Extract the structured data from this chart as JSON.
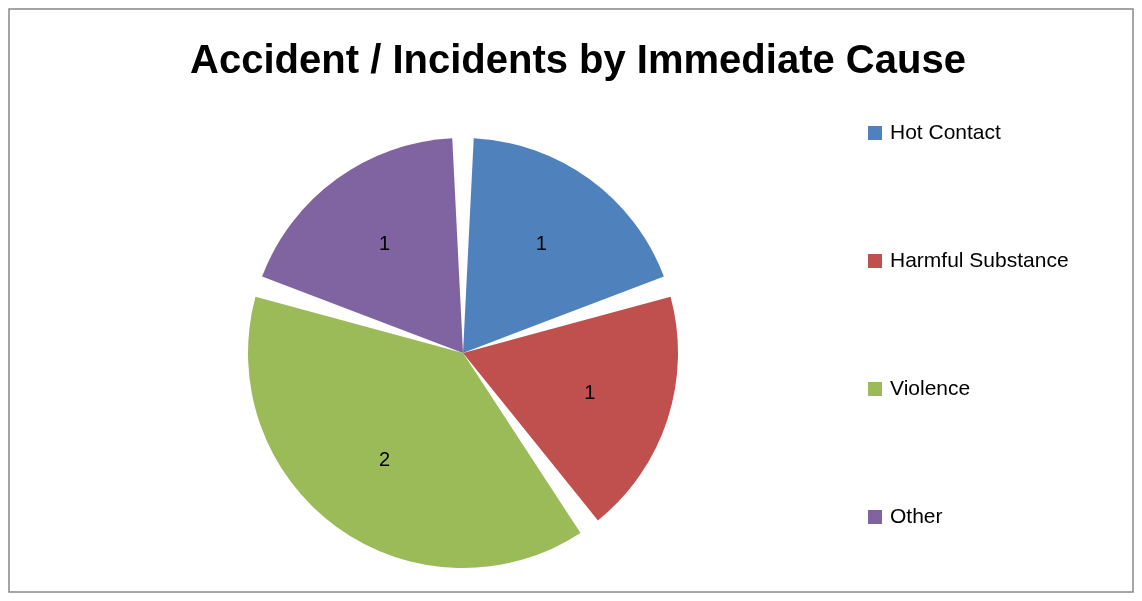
{
  "chart_data": {
    "type": "pie",
    "title": "Accident / Incidents by Immediate Cause",
    "categories": [
      "Hot Contact",
      "Harmful Substance",
      "Violence",
      "Other"
    ],
    "values": [
      1,
      1,
      2,
      1
    ],
    "colors": [
      "#4f81bd",
      "#c0504d",
      "#9bbb59",
      "#8064a2"
    ],
    "data_labels": true,
    "legend": "right"
  }
}
